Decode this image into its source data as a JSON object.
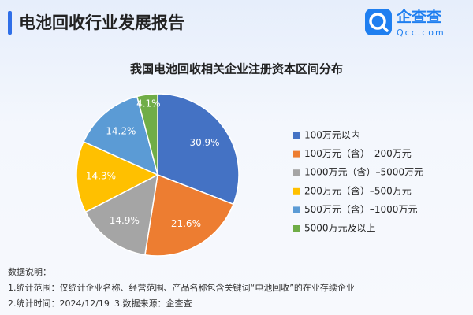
{
  "header": {
    "title": "电池回收行业发展报告",
    "logo": "企查查",
    "logo_sub": "Qcc.com"
  },
  "chart_data": {
    "type": "pie",
    "title": "我国电池回收相关企业注册资本区间分布",
    "categories": [
      "100万元以内",
      "100万元（含）–200万元",
      "1000万元（含）–5000万元",
      "200万元（含）–500万元",
      "500万元（含）–1000万元",
      "5000万元及以上"
    ],
    "values": [
      30.9,
      21.6,
      14.9,
      14.3,
      14.2,
      4.1
    ],
    "value_labels": [
      "30.9%",
      "21.6%",
      "14.9%",
      "14.3%",
      "14.2%",
      "4.1%"
    ],
    "colors": [
      "#4472c4",
      "#ed7d31",
      "#a5a5a5",
      "#ffc000",
      "#5b9bd5",
      "#70ad47"
    ],
    "legend": "right"
  },
  "notes": [
    "数据说明：",
    "1.统计范围：仅统计企业名称、经营范围、产品名称包含关键词“电池回收”的在业存续企业",
    "2.统计时间：2024/12/19",
    "3.数据来源：企查查"
  ]
}
